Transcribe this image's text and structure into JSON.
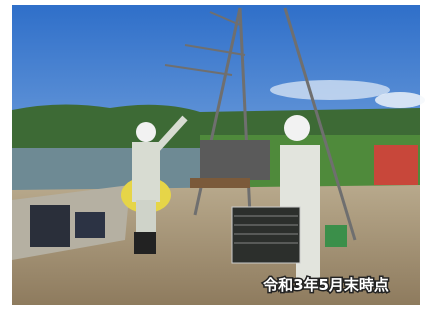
{
  "caption": "令和3年5月末時点"
}
